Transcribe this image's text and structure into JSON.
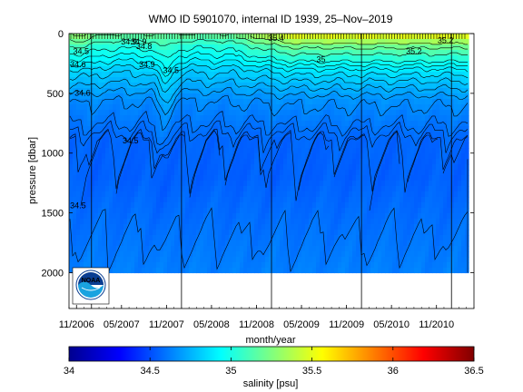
{
  "chart_data": {
    "type": "heatmap",
    "title": "WMO ID 5901070, internal ID 1939, 25–Nov–2019",
    "xlabel": "month/year",
    "ylabel": "pressure [dbar]",
    "x_tick_labels": [
      "11/2006",
      "05/2007",
      "11/2007",
      "05/2008",
      "11/2008",
      "05/2009",
      "11/2009",
      "05/2010",
      "11/2010"
    ],
    "y_ticks": [
      0,
      500,
      1000,
      1500,
      2000
    ],
    "y_tick_labels": [
      "0",
      "500",
      "1000",
      "1500",
      "2000"
    ],
    "ylim": [
      2300,
      0
    ],
    "profile_max_pressure": 2000,
    "colorbar": {
      "label": "salinity [psu]",
      "range": [
        34,
        36.5
      ],
      "ticks": [
        34,
        34.5,
        35,
        35.5,
        36,
        36.5
      ],
      "tick_labels": [
        "34",
        "34.5",
        "35",
        "35.5",
        "36",
        "36.5"
      ],
      "colormap": "jet"
    },
    "contour_labels": [
      {
        "text": "34.5",
        "x_month": 1.6,
        "p": 170
      },
      {
        "text": "34.6",
        "x_month": 1.2,
        "p": 280
      },
      {
        "text": "34.6",
        "x_month": 1.8,
        "p": 520
      },
      {
        "text": "34.9",
        "x_month": 8.0,
        "p": 90
      },
      {
        "text": "34.9",
        "x_month": 9.3,
        "p": 90
      },
      {
        "text": "34.8",
        "x_month": 10.0,
        "p": 130
      },
      {
        "text": "34.5",
        "x_month": 13.6,
        "p": 330
      },
      {
        "text": "34.5",
        "x_month": 8.2,
        "p": 920
      },
      {
        "text": "34.5",
        "x_month": 1.2,
        "p": 1460
      },
      {
        "text": "35.4",
        "x_month": 27.6,
        "p": 60
      },
      {
        "text": "35.2",
        "x_month": 50.2,
        "p": 80
      },
      {
        "text": "34.9",
        "x_month": 10.4,
        "p": 280
      },
      {
        "text": "35",
        "x_month": 33.6,
        "p": 240
      },
      {
        "text": "35.2",
        "x_month": 46.0,
        "p": 170
      }
    ]
  },
  "logo": {
    "name": "NOAA"
  }
}
